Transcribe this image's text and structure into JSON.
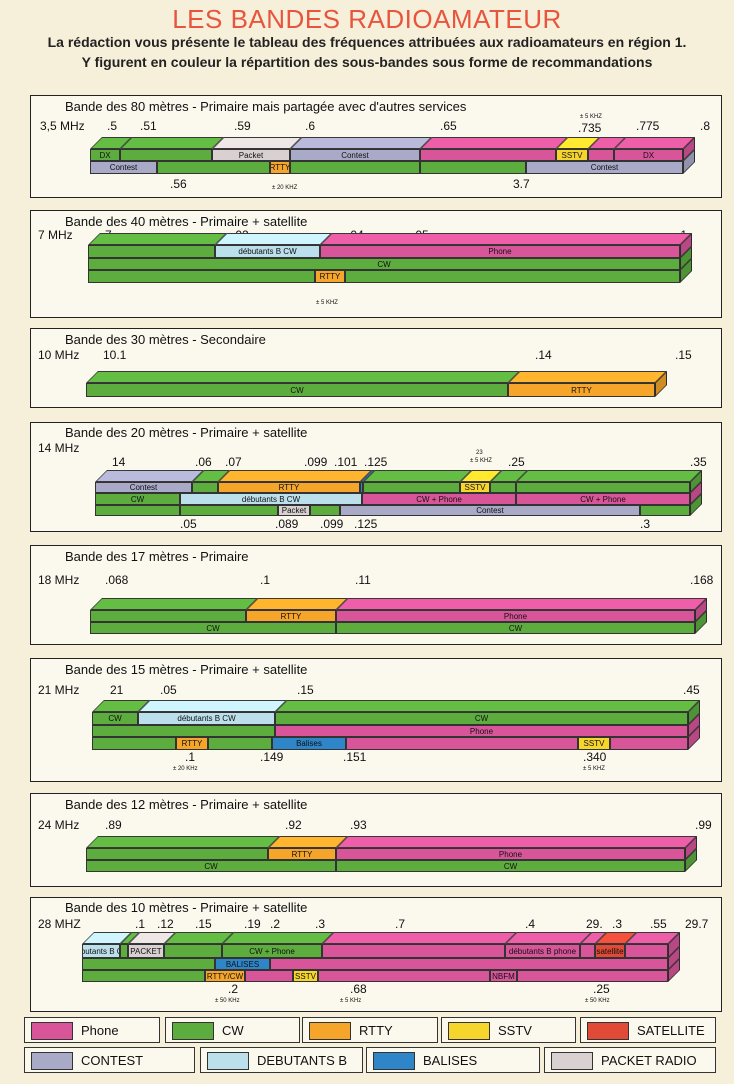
{
  "header": {
    "title": "LES BANDES RADIOAMATEUR",
    "line1": "La rédaction vous présente le tableau des fréquences attribuées aux radioamateurs en région 1.",
    "line2": "Y figurent en couleur la répartition des sous-bandes sous forme de recommandations"
  },
  "colors": {
    "phone": "#d9559a",
    "cw": "#5cad3e",
    "rtty": "#f5a52a",
    "sstv": "#f6d52c",
    "satellite": "#e04a36",
    "contest": "#a9aac8",
    "debutants": "#bcdfec",
    "balises": "#2e86c8",
    "packet": "#d9d1d1"
  },
  "bands": [
    {
      "title": "Bande des 80 mètres - Primaire mais partagée avec d'autres services",
      "ticks": [
        "3,5 MHz",
        ".5",
        ".51",
        ".59",
        ".6",
        ".65",
        ".735",
        ".775",
        ".8",
        ".56",
        "3.7"
      ],
      "notes": [
        "± 5 KHZ",
        "± 20 KHZ"
      ],
      "segments": [
        {
          "label": "DX",
          "color": "cw"
        },
        {
          "label": "",
          "color": "cw"
        },
        {
          "label": "Packet",
          "color": "packet"
        },
        {
          "label": "Contest",
          "color": "contest"
        },
        {
          "label": "",
          "color": "phone"
        },
        {
          "label": "SSTV",
          "color": "sstv"
        },
        {
          "label": "",
          "color": "phone"
        },
        {
          "label": "DX",
          "color": "phone"
        },
        {
          "label": "Contest",
          "color": "contest"
        },
        {
          "label": "",
          "color": "cw"
        },
        {
          "label": "RTTY",
          "color": "rtty"
        },
        {
          "label": "",
          "color": "cw"
        },
        {
          "label": "",
          "color": "cw"
        },
        {
          "label": "Contest",
          "color": "contest"
        }
      ]
    },
    {
      "title": "Bande des 40 mètres - Primaire + satellite",
      "ticks": [
        "7 MHz",
        "7",
        ".02",
        ".04",
        ".05",
        ".1"
      ],
      "notes": [
        "± 5 KHZ"
      ],
      "segments": [
        {
          "label": "",
          "color": "cw"
        },
        {
          "label": "débutants B CW",
          "color": "debutants"
        },
        {
          "label": "Phone",
          "color": "phone"
        },
        {
          "label": "CW",
          "color": "cw"
        },
        {
          "label": "",
          "color": "cw"
        },
        {
          "label": "RTTY",
          "color": "rtty"
        },
        {
          "label": "",
          "color": "cw"
        }
      ]
    },
    {
      "title": "Bande des 30 mètres - Secondaire",
      "ticks": [
        "10 MHz",
        "10.1",
        ".14",
        ".15"
      ],
      "notes": [],
      "segments": [
        {
          "label": "CW",
          "color": "cw"
        },
        {
          "label": "RTTY",
          "color": "rtty"
        }
      ]
    },
    {
      "title": "Bande des  20 mètres - Primaire + satellite",
      "ticks": [
        "14 MHz",
        "14",
        ".06",
        ".07",
        ".099",
        ".101",
        ".125",
        ".25",
        ".35",
        ".05",
        ".089",
        ".099",
        ".125",
        ".3"
      ],
      "notes": [
        "23",
        "± 5 KHZ"
      ],
      "segments": [
        {
          "label": "Contest",
          "color": "contest"
        },
        {
          "label": "",
          "color": "cw"
        },
        {
          "label": "RTTY",
          "color": "rtty"
        },
        {
          "label": "",
          "color": "balises"
        },
        {
          "label": "",
          "color": "cw"
        },
        {
          "label": "SSTV",
          "color": "sstv"
        },
        {
          "label": "",
          "color": "cw"
        },
        {
          "label": "",
          "color": "cw"
        },
        {
          "label": "CW",
          "color": "cw"
        },
        {
          "label": "débutants B CW",
          "color": "debutants"
        },
        {
          "label": "CW + Phone",
          "color": "phone"
        },
        {
          "label": "CW + Phone",
          "color": "phone"
        },
        {
          "label": "",
          "color": "cw"
        },
        {
          "label": "",
          "color": "cw"
        },
        {
          "label": "Packet",
          "color": "packet"
        },
        {
          "label": "",
          "color": "cw"
        },
        {
          "label": "Contest",
          "color": "contest"
        },
        {
          "label": "",
          "color": "cw"
        }
      ]
    },
    {
      "title": "Bande des 17 mètres - Primaire",
      "ticks": [
        "18 MHz",
        ".068",
        ".1",
        ".11",
        ".168"
      ],
      "notes": [],
      "segments": [
        {
          "label": "",
          "color": "cw"
        },
        {
          "label": "RTTY",
          "color": "rtty"
        },
        {
          "label": "Phone",
          "color": "phone"
        },
        {
          "label": "CW",
          "color": "cw"
        },
        {
          "label": "CW",
          "color": "cw"
        }
      ]
    },
    {
      "title": "Bande des 15 mètres - Primaire + satellite",
      "ticks": [
        "21 MHz",
        "21",
        ".05",
        ".15",
        ".45",
        ".1",
        ".149",
        ".151",
        ".340"
      ],
      "notes": [
        "± 20 KHz",
        "± 5 KHZ"
      ],
      "segments": [
        {
          "label": "CW",
          "color": "cw"
        },
        {
          "label": "débutants B CW",
          "color": "debutants"
        },
        {
          "label": "CW",
          "color": "cw"
        },
        {
          "label": "",
          "color": "cw"
        },
        {
          "label": "Phone",
          "color": "phone"
        },
        {
          "label": "",
          "color": "cw"
        },
        {
          "label": "RTTY",
          "color": "rtty"
        },
        {
          "label": "",
          "color": "cw"
        },
        {
          "label": "Balises",
          "color": "balises"
        },
        {
          "label": "",
          "color": "phone"
        },
        {
          "label": "SSTV",
          "color": "sstv"
        },
        {
          "label": "",
          "color": "phone"
        }
      ]
    },
    {
      "title": "Bande des 12 mètres - Primaire + satellite",
      "ticks": [
        "24 MHz",
        ".89",
        ".92",
        ".93",
        ".99"
      ],
      "notes": [],
      "segments": [
        {
          "label": "",
          "color": "cw"
        },
        {
          "label": "RTTY",
          "color": "rtty"
        },
        {
          "label": "Phone",
          "color": "phone"
        },
        {
          "label": "CW",
          "color": "cw"
        },
        {
          "label": "CW",
          "color": "cw"
        }
      ]
    },
    {
      "title": "Bande des 10 mètres - Primaire + satellite",
      "ticks": [
        "28 MHZ",
        ".1",
        ".12",
        ".15",
        ".19",
        ".2",
        ".3",
        ".7",
        ".4",
        "29.",
        ".3",
        ".55",
        "29.7",
        ".2",
        ".68",
        ".25"
      ],
      "notes": [
        "± 50 KHz",
        "± 5 KHz",
        "± 50 KHz"
      ],
      "segments": [
        {
          "label": "débutants B CW",
          "color": "debutants"
        },
        {
          "label": "",
          "color": "cw"
        },
        {
          "label": "PACKET",
          "color": "packet"
        },
        {
          "label": "",
          "color": "cw"
        },
        {
          "label": "CW + Phone",
          "color": "cw"
        },
        {
          "label": "",
          "color": "phone"
        },
        {
          "label": "débutants B phone",
          "color": "phone"
        },
        {
          "label": "",
          "color": "phone"
        },
        {
          "label": "satellite",
          "color": "satellite"
        },
        {
          "label": "",
          "color": "phone"
        },
        {
          "label": "",
          "color": "cw"
        },
        {
          "label": "BALISES",
          "color": "balises"
        },
        {
          "label": "",
          "color": "phone"
        },
        {
          "label": "",
          "color": "cw"
        },
        {
          "label": "RTTY/CW",
          "color": "rtty"
        },
        {
          "label": "",
          "color": "phone"
        },
        {
          "label": "SSTV",
          "color": "sstv"
        },
        {
          "label": "",
          "color": "phone"
        },
        {
          "label": "NBFM",
          "color": "phone"
        },
        {
          "label": "",
          "color": "phone"
        }
      ]
    }
  ],
  "legend": [
    {
      "label": "Phone",
      "color": "phone"
    },
    {
      "label": "CW",
      "color": "cw"
    },
    {
      "label": "RTTY",
      "color": "rtty"
    },
    {
      "label": "SSTV",
      "color": "sstv"
    },
    {
      "label": "SATELLITE",
      "color": "satellite"
    },
    {
      "label": "CONTEST",
      "color": "contest"
    },
    {
      "label": "DEBUTANTS B",
      "color": "debutants"
    },
    {
      "label": "BALISES",
      "color": "balises"
    },
    {
      "label": "PACKET RADIO",
      "color": "packet"
    }
  ]
}
